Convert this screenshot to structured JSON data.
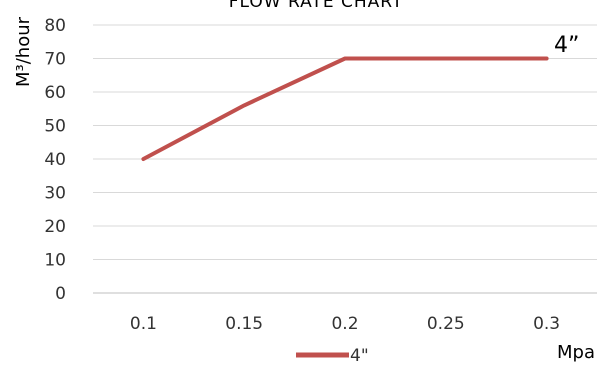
{
  "chart_data": {
    "type": "line",
    "title": "FLOW RATE CHART",
    "xlabel": "Mpa",
    "ylabel": "M³/hour",
    "x": [
      0.1,
      0.15,
      0.2,
      0.25,
      0.3
    ],
    "x_tick_labels": [
      "0.1",
      "0.15",
      "0.2",
      "0.25",
      "0.3"
    ],
    "y_tick_labels": [
      "0",
      "10",
      "20",
      "30",
      "40",
      "50",
      "60",
      "70",
      "80"
    ],
    "ylim": [
      0,
      80
    ],
    "grid": "horizontal",
    "legend_position": "bottom",
    "series": [
      {
        "name": "4\"",
        "values": [
          40,
          56,
          70,
          70,
          70
        ],
        "color": "#c0504d"
      }
    ],
    "annotation": "4”"
  }
}
